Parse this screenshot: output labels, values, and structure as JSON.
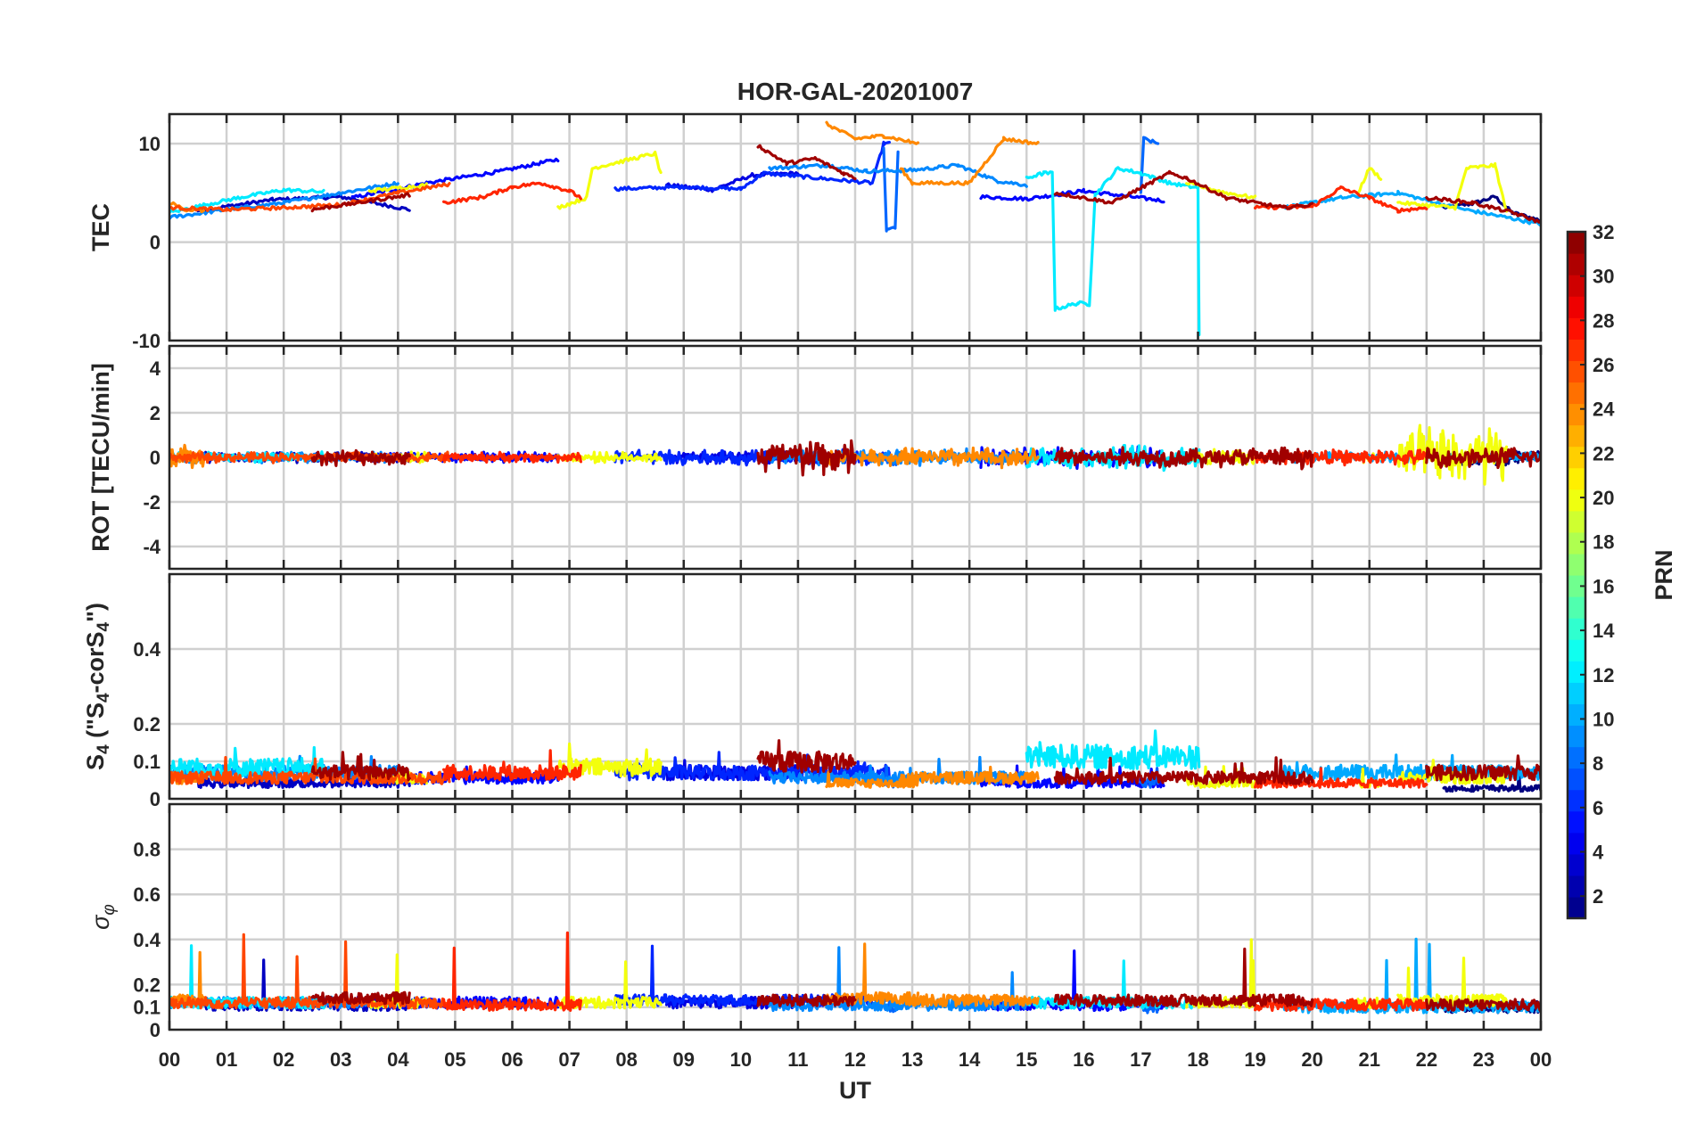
{
  "chart_data": {
    "type": "line",
    "title": "HOR-GAL-20201007",
    "xlabel": "UT",
    "x_ticks": [
      "00",
      "01",
      "02",
      "03",
      "04",
      "05",
      "06",
      "07",
      "08",
      "09",
      "10",
      "11",
      "12",
      "13",
      "14",
      "15",
      "16",
      "17",
      "18",
      "19",
      "20",
      "21",
      "22",
      "23",
      "00"
    ],
    "xlim_hours": [
      0,
      24
    ],
    "grid": true,
    "colorbar": {
      "label": "PRN",
      "range": [
        1,
        32
      ],
      "ticks": [
        "2",
        "4",
        "6",
        "8",
        "10",
        "12",
        "14",
        "16",
        "18",
        "20",
        "22",
        "24",
        "26",
        "28",
        "30",
        "32"
      ],
      "colormap": "jet"
    },
    "panels": [
      {
        "name": "tec",
        "ylabel": "TEC",
        "ylim": [
          -10,
          13
        ],
        "yticks": [
          "10",
          "0",
          "-10"
        ]
      },
      {
        "name": "rot",
        "ylabel": "ROT [TECU/min]",
        "ylim": [
          -5,
          5
        ],
        "yticks": [
          "4",
          "2",
          "0",
          "-2",
          "-4"
        ]
      },
      {
        "name": "s4",
        "ylabel_main": "S",
        "ylabel_sub": "4",
        "ylabel_rest": " (\"S",
        "ylabel_sub2": "4",
        "ylabel_rest2": "-corS",
        "ylabel_sub3": "4",
        "ylabel_end": "\")",
        "ylim": [
          0,
          0.6
        ],
        "yticks": [
          "0.4",
          "0.2",
          "0.1",
          "0"
        ]
      },
      {
        "name": "sigma",
        "ylabel_main": "σ",
        "ylabel_sub": "φ",
        "ylim": [
          0,
          1
        ],
        "yticks": [
          "0.8",
          "0.6",
          "0.4",
          "0.2",
          "0.1",
          "0"
        ]
      }
    ],
    "series": [
      {
        "prn": 1,
        "tec": [
          [
            22.3,
            3.5
          ],
          [
            22.8,
            3.9
          ],
          [
            23.2,
            4.6
          ],
          [
            23.5,
            3.0
          ],
          [
            24,
            2.2
          ]
        ],
        "rot_amp": 0.3,
        "s4_base": 0.02,
        "sig_base": 0.1
      },
      {
        "prn": 3,
        "tec": [
          [
            0.5,
            3.2
          ],
          [
            1.8,
            4.3
          ],
          [
            3.0,
            4.6
          ],
          [
            4.2,
            3.3
          ]
        ],
        "rot_amp": 0.2,
        "s4_base": 0.03,
        "sig_base": 0.11
      },
      {
        "prn": 4,
        "tec": [
          [
            8.7,
            5.8
          ],
          [
            9.5,
            5.3
          ],
          [
            10.2,
            6.8
          ],
          [
            11.0,
            7.0
          ]
        ],
        "rot_amp": 0.25,
        "s4_base": 0.05,
        "sig_base": 0.12
      },
      {
        "prn": 5,
        "tec": [
          [
            3.2,
            4.5
          ],
          [
            4.5,
            6.0
          ],
          [
            5.8,
            7.2
          ],
          [
            6.8,
            8.4
          ]
        ],
        "rot_amp": 0.2,
        "s4_base": 0.04,
        "sig_base": 0.12
      },
      {
        "prn": 5,
        "tec": [
          [
            14.2,
            4.6
          ],
          [
            15.0,
            4.4
          ],
          [
            16.0,
            5.2
          ],
          [
            17.4,
            4.2
          ]
        ],
        "rot_amp": 0.4,
        "s4_base": 0.03,
        "sig_base": 0.11
      },
      {
        "prn": 6,
        "tec": [
          [
            7.8,
            5.4
          ],
          [
            9.0,
            5.6
          ],
          [
            10.0,
            5.4
          ],
          [
            10.4,
            7.0
          ],
          [
            12.3,
            6.0
          ],
          [
            12.5,
            10.0
          ],
          [
            12.6,
            10.0
          ]
        ],
        "rot_amp": 0.3,
        "s4_base": 0.05,
        "sig_base": 0.13
      },
      {
        "prn": 8,
        "tec": [
          [
            12.5,
            9.5
          ],
          [
            12.55,
            1.2
          ],
          [
            12.7,
            1.5
          ],
          [
            12.75,
            9.0
          ]
        ],
        "rot_amp": 0.3,
        "s4_base": 0.03,
        "sig_base": 0.1
      },
      {
        "prn": 8,
        "tec": [
          [
            17.0,
            5.0
          ],
          [
            17.05,
            10.5
          ],
          [
            17.3,
            10.0
          ]
        ],
        "rot_amp": 0.2,
        "s4_base": 0.03,
        "sig_base": 0.1
      },
      {
        "prn": 9,
        "tec": [
          [
            0,
            2.5
          ],
          [
            1.0,
            3.3
          ],
          [
            2.0,
            4.0
          ],
          [
            3.0,
            5.0
          ],
          [
            4.0,
            6.0
          ]
        ],
        "rot_amp": 0.2,
        "s4_base": 0.05,
        "sig_base": 0.12
      },
      {
        "prn": 9,
        "tec": [
          [
            10.5,
            7.5
          ],
          [
            11.5,
            7.8
          ],
          [
            12.2,
            7.2
          ],
          [
            13.0,
            7.3
          ],
          [
            13.8,
            7.8
          ],
          [
            14.5,
            6.2
          ],
          [
            15.0,
            5.8
          ]
        ],
        "rot_amp": 0.3,
        "s4_base": 0.04,
        "sig_base": 0.11
      },
      {
        "prn": 10,
        "tec": [
          [
            19.5,
            3.5
          ],
          [
            20.5,
            4.5
          ],
          [
            21.5,
            5.0
          ],
          [
            22.5,
            3.5
          ],
          [
            23.5,
            2.4
          ],
          [
            24,
            1.8
          ]
        ],
        "rot_amp": 0.2,
        "s4_base": 0.05,
        "sig_base": 0.1
      },
      {
        "prn": 12,
        "tec": [
          [
            0,
            3.0
          ],
          [
            1.2,
            4.5
          ],
          [
            2.0,
            5.3
          ],
          [
            2.7,
            5.1
          ]
        ],
        "rot_amp": 0.2,
        "s4_base": 0.06,
        "sig_base": 0.12
      },
      {
        "prn": 12,
        "tec": [
          [
            15.0,
            6.5
          ],
          [
            15.3,
            7.0
          ],
          [
            15.45,
            7.0
          ],
          [
            15.5,
            -6.8
          ],
          [
            15.9,
            -6.2
          ],
          [
            16.1,
            -6.3
          ],
          [
            16.2,
            4.8
          ],
          [
            16.6,
            7.5
          ],
          [
            17.0,
            7.0
          ],
          [
            17.5,
            6.0
          ],
          [
            18.0,
            5.5
          ],
          [
            18.02,
            -9.5
          ]
        ],
        "rot_amp": 0.5,
        "s4_base": 0.08,
        "sig_base": 0.12
      },
      {
        "prn": 20,
        "tec": [
          [
            3.5,
            5.2
          ],
          [
            4.5,
            5.8
          ]
        ],
        "rot_amp": 0.2,
        "s4_base": 0.04,
        "sig_base": 0.12
      },
      {
        "prn": 20,
        "tec": [
          [
            6.8,
            3.5
          ],
          [
            7.3,
            4.5
          ],
          [
            7.4,
            7.5
          ],
          [
            8.5,
            9.0
          ],
          [
            8.6,
            6.9
          ]
        ],
        "rot_amp": 0.2,
        "s4_base": 0.06,
        "sig_base": 0.12
      },
      {
        "prn": 20,
        "tec": [
          [
            17.8,
            6.0
          ],
          [
            18.5,
            5.0
          ],
          [
            19.0,
            4.5
          ]
        ],
        "rot_amp": 0.3,
        "s4_base": 0.03,
        "sig_base": 0.12
      },
      {
        "prn": 20,
        "tec": [
          [
            20.8,
            5.0
          ],
          [
            21.0,
            7.5
          ],
          [
            21.2,
            6.5
          ]
        ],
        "rot_amp": 0.2,
        "s4_base": 0.03,
        "sig_base": 0.12
      },
      {
        "prn": 20,
        "tec": [
          [
            21.5,
            4.0
          ],
          [
            22.5,
            3.5
          ],
          [
            22.7,
            7.5
          ],
          [
            23.2,
            7.8
          ],
          [
            23.4,
            3.0
          ]
        ],
        "rot_amp": 1.2,
        "s4_base": 0.04,
        "sig_base": 0.13
      },
      {
        "prn": 24,
        "tec": [
          [
            0,
            4.0
          ],
          [
            0.3,
            3.3
          ],
          [
            0.6,
            3.2
          ]
        ],
        "rot_amp": 0.5,
        "s4_base": 0.04,
        "sig_base": 0.13
      },
      {
        "prn": 24,
        "tec": [
          [
            11.5,
            12.0
          ],
          [
            12.0,
            10.5
          ],
          [
            12.5,
            10.8
          ],
          [
            13.1,
            10.0
          ]
        ],
        "rot_amp": 0.3,
        "s4_base": 0.03,
        "sig_base": 0.14
      },
      {
        "prn": 24,
        "tec": [
          [
            12.8,
            7.5
          ],
          [
            13.0,
            6.0
          ],
          [
            14.0,
            6.0
          ],
          [
            14.6,
            10.5
          ],
          [
            15.2,
            10.0
          ]
        ],
        "rot_amp": 0.4,
        "s4_base": 0.04,
        "sig_base": 0.13
      },
      {
        "prn": 26,
        "tec": [
          [
            0,
            3.5
          ],
          [
            1.0,
            3.3
          ],
          [
            2.0,
            3.5
          ],
          [
            3.0,
            3.8
          ],
          [
            4.0,
            5.0
          ],
          [
            4.9,
            5.9
          ]
        ],
        "rot_amp": 0.2,
        "s4_base": 0.04,
        "sig_base": 0.12
      },
      {
        "prn": 27,
        "tec": [
          [
            4.8,
            4.0
          ],
          [
            5.5,
            4.6
          ],
          [
            6.0,
            5.6
          ],
          [
            6.5,
            6.0
          ],
          [
            7.0,
            5.2
          ],
          [
            7.2,
            4.5
          ]
        ],
        "rot_amp": 0.2,
        "s4_base": 0.05,
        "sig_base": 0.11
      },
      {
        "prn": 27,
        "tec": [
          [
            19.0,
            3.5
          ],
          [
            20.0,
            3.6
          ],
          [
            20.5,
            5.5
          ],
          [
            21.0,
            4.5
          ],
          [
            21.5,
            3.2
          ],
          [
            22.0,
            3.5
          ]
        ],
        "rot_amp": 0.3,
        "s4_base": 0.03,
        "sig_base": 0.11
      },
      {
        "prn": 31,
        "tec": [
          [
            2.5,
            3.3
          ],
          [
            3.3,
            4.0
          ],
          [
            4.2,
            4.8
          ]
        ],
        "rot_amp": 0.3,
        "s4_base": 0.05,
        "sig_base": 0.14
      },
      {
        "prn": 31,
        "tec": [
          [
            10.3,
            9.8
          ],
          [
            10.8,
            8.0
          ],
          [
            11.3,
            8.5
          ],
          [
            11.8,
            7.0
          ],
          [
            12.0,
            6.5
          ]
        ],
        "rot_amp": 0.8,
        "s4_base": 0.07,
        "sig_base": 0.13
      },
      {
        "prn": 31,
        "tec": [
          [
            15.5,
            5.0
          ],
          [
            16.5,
            4.0
          ],
          [
            17.5,
            7.0
          ],
          [
            17.8,
            6.5
          ],
          [
            18.5,
            4.5
          ],
          [
            19.5,
            3.5
          ],
          [
            20.0,
            3.8
          ]
        ],
        "rot_amp": 0.4,
        "s4_base": 0.04,
        "sig_base": 0.13
      },
      {
        "prn": 31,
        "tec": [
          [
            22.0,
            4.5
          ],
          [
            22.8,
            4.0
          ],
          [
            23.5,
            3.0
          ],
          [
            24,
            2.0
          ]
        ],
        "rot_amp": 0.4,
        "s4_base": 0.05,
        "sig_base": 0.11
      }
    ]
  }
}
